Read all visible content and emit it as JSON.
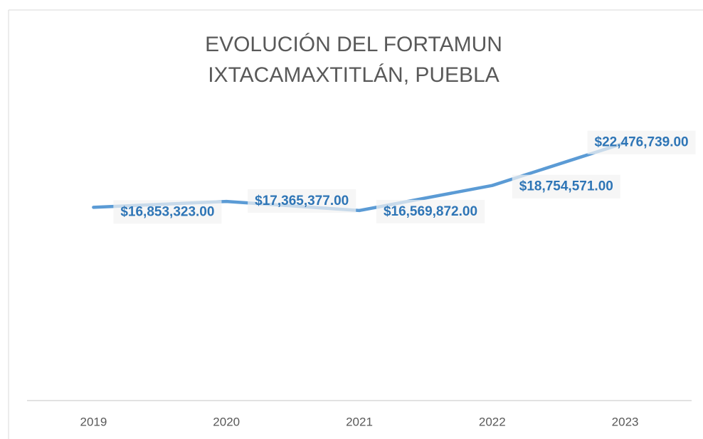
{
  "chart_data": {
    "type": "line",
    "title": [
      "EVOLUCIÓN DEL FORTAMUN",
      "IXTACAMAXTITLÁN, PUEBLA"
    ],
    "categories": [
      "2019",
      "2020",
      "2021",
      "2022",
      "2023"
    ],
    "series": [
      {
        "name": "FORTAMUN",
        "color": "#5b9bd5",
        "values": [
          16853323,
          17365377,
          16569872,
          18754571,
          22476739
        ],
        "value_labels": [
          "$16,853,323.00",
          "$17,365,377.00",
          "$16,569,872.00",
          "$18,754,571.00",
          "$22,476,739.00"
        ]
      }
    ],
    "ylim": [
      0,
      25000000
    ]
  }
}
